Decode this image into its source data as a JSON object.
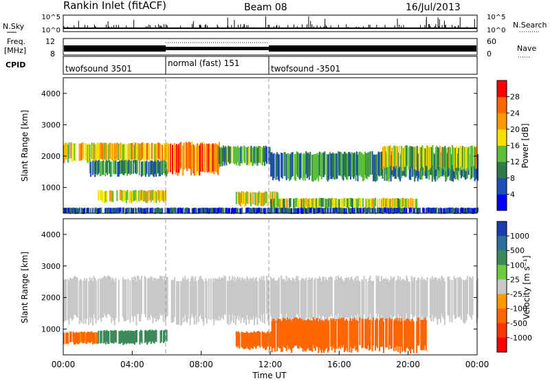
{
  "header": {
    "station": "Rankin Inlet (fitACF)",
    "beam": "Beam 08",
    "date": "16/Jul/2013"
  },
  "aux": {
    "nsky_label": "N.Sky",
    "nsky_ticks": [
      "10^5",
      "10^0"
    ],
    "nsearch_label": "N.Search",
    "nsearch_ticks": [
      "10^5",
      "10^0"
    ],
    "freq_label": "Freq.",
    "freq_unit": "[MHz]",
    "freq_ticks": [
      "12",
      "8"
    ],
    "nave_label": "Nave",
    "nave_ticks": [
      "60",
      "0"
    ],
    "cpid_label": "CPID",
    "cpid_segments": [
      {
        "label": "twofsound 3501",
        "start": 0,
        "end": 6
      },
      {
        "label": "normal (fast) 151",
        "start": 6,
        "end": 12
      },
      {
        "label": "twofsound -3501",
        "start": 12,
        "end": 24
      }
    ]
  },
  "chart_data": [
    {
      "type": "heatmap",
      "title": "",
      "xlabel": "Time UT",
      "ylabel": "Slant Range [km]",
      "xlim": [
        0,
        24
      ],
      "ylim": [
        180,
        4500
      ],
      "yticks": [
        1000,
        2000,
        3000,
        4000
      ],
      "colorbar": {
        "label": "Power [dB]",
        "ticks": [
          "4",
          "8",
          "12",
          "16",
          "20",
          "24",
          "28"
        ],
        "colors": [
          "#0000ff",
          "#1d4db8",
          "#2e7b4a",
          "#5bbf3a",
          "#f5e000",
          "#ff9900",
          "#ff6600",
          "#ff0000"
        ]
      },
      "bands": [
        {
          "t0": 0.0,
          "t1": 6.0,
          "r0": 1850,
          "r1": 2400,
          "value": 20
        },
        {
          "t0": 1.5,
          "t1": 6.0,
          "r0": 1400,
          "r1": 1850,
          "value": 10
        },
        {
          "t0": 2.0,
          "t1": 6.0,
          "r0": 550,
          "r1": 900,
          "value": 18
        },
        {
          "t0": 6.0,
          "t1": 9.0,
          "r0": 1500,
          "r1": 2400,
          "value": 24
        },
        {
          "t0": 9.0,
          "t1": 12.0,
          "r0": 1750,
          "r1": 2300,
          "value": 12
        },
        {
          "t0": 10.0,
          "t1": 12.5,
          "r0": 450,
          "r1": 850,
          "value": 18
        },
        {
          "t0": 12.0,
          "t1": 24.0,
          "r0": 1300,
          "r1": 2100,
          "value": 10
        },
        {
          "t0": 12.0,
          "t1": 20.5,
          "r0": 350,
          "r1": 650,
          "value": 16
        },
        {
          "t0": 18.5,
          "t1": 24.0,
          "r0": 1600,
          "r1": 2300,
          "value": 16
        },
        {
          "t0": 0.0,
          "t1": 24.0,
          "r0": 180,
          "r1": 350,
          "value": 6
        }
      ]
    },
    {
      "type": "heatmap",
      "title": "",
      "xlabel": "Time UT",
      "ylabel": "Slant Range [km]",
      "xlim": [
        0,
        24
      ],
      "ylim": [
        180,
        4500
      ],
      "yticks": [
        1000,
        2000,
        3000,
        4000
      ],
      "xticks": [
        "00:00",
        "04:00",
        "08:00",
        "12:00",
        "16:00",
        "20:00",
        "00:00"
      ],
      "colorbar": {
        "label": "Velocity [m s⁻¹]",
        "ticks": [
          "1000",
          "500",
          "100",
          "25",
          "-25",
          "-100",
          "-500",
          "-1000"
        ],
        "colors": [
          "#1a3cb0",
          "#2e6f9a",
          "#3c8a5a",
          "#6ccc3c",
          "#c8c8c8",
          "#ff9900",
          "#ff6600",
          "#ff3300",
          "#ff0000"
        ]
      },
      "bands": [
        {
          "t0": 0.0,
          "t1": 24.0,
          "r0": 1300,
          "r1": 2600,
          "value": 0
        },
        {
          "t0": 2.0,
          "t1": 6.0,
          "r0": 550,
          "r1": 950,
          "value": 200
        },
        {
          "t0": 0.0,
          "t1": 2.0,
          "r0": 550,
          "r1": 900,
          "value": -150
        },
        {
          "t0": 10.0,
          "t1": 12.0,
          "r0": 400,
          "r1": 900,
          "value": -300
        },
        {
          "t0": 12.0,
          "t1": 21.0,
          "r0": 350,
          "r1": 1300,
          "value": -250
        }
      ]
    }
  ]
}
